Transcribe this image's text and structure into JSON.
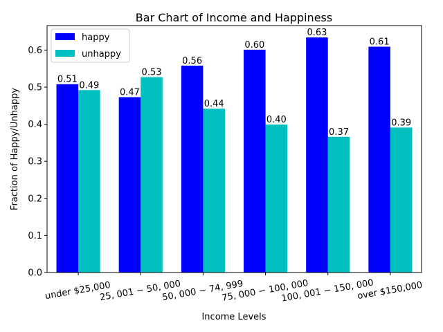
{
  "chart_data": {
    "type": "bar",
    "title": "Bar Chart of Income and Happiness",
    "xlabel": "Income Levels",
    "ylabel": "Fraction of Happy/Unhappy",
    "categories": [
      "under $25,000",
      "$25,001-$50,000",
      "$50,000-$74,999",
      "$75,000-$100,000",
      "$100,001-$150,000",
      "over $150,000"
    ],
    "category_tick_text": [
      "under $25,000",
      "25, 001 − 50, 000",
      "50, 000 − 74, 999",
      "75, 000 − 100, 000",
      "100, 001 − 150, 000",
      "over $150,000"
    ],
    "series": [
      {
        "name": "happy",
        "color": "#0000ff",
        "values": [
          0.508,
          0.473,
          0.558,
          0.601,
          0.634,
          0.609
        ],
        "labels": [
          "0.51",
          "0.47",
          "0.56",
          "0.60",
          "0.63",
          "0.61"
        ]
      },
      {
        "name": "unhappy",
        "color": "#00bfbf",
        "values": [
          0.492,
          0.527,
          0.442,
          0.399,
          0.366,
          0.391
        ],
        "labels": [
          "0.49",
          "0.53",
          "0.44",
          "0.40",
          "0.37",
          "0.39"
        ]
      }
    ],
    "yticks": [
      "0.0",
      "0.1",
      "0.2",
      "0.3",
      "0.4",
      "0.5",
      "0.6"
    ],
    "ylim": [
      0,
      0.666
    ],
    "legend_position": "top-left",
    "grid": false
  }
}
